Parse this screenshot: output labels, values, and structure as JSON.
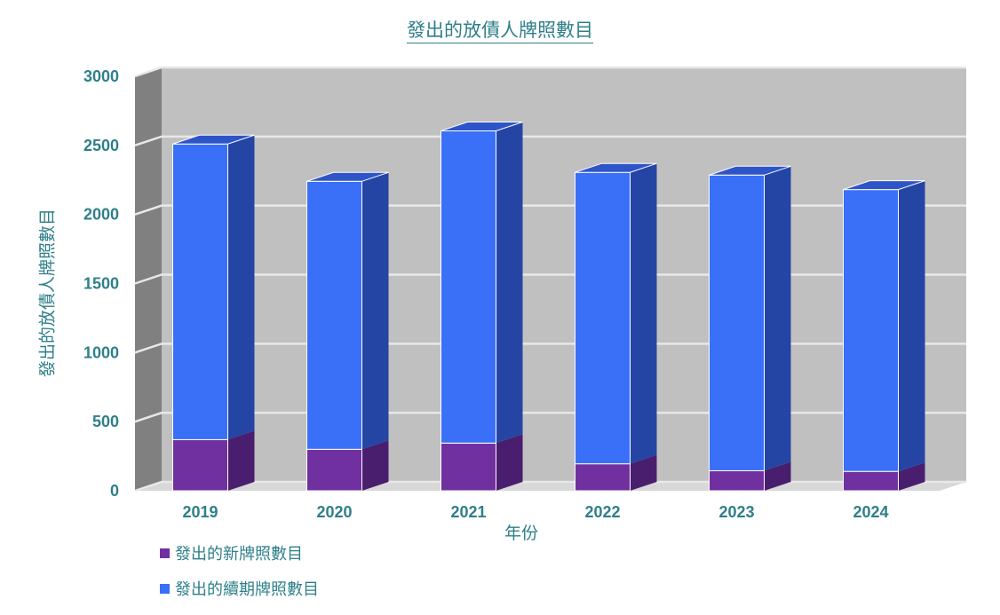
{
  "chart_data": {
    "type": "bar",
    "stacked": true,
    "title": "發出的放債人牌照數目",
    "xlabel": "年份",
    "ylabel": "發出的放債人牌照數目",
    "categories": [
      "2019",
      "2020",
      "2021",
      "2022",
      "2023",
      "2024"
    ],
    "ylim": [
      0,
      3000
    ],
    "yticks": [
      0,
      500,
      1000,
      1500,
      2000,
      2500,
      3000
    ],
    "grid": true,
    "legend_position": "bottom-left",
    "series": [
      {
        "name": "發出的新牌照數目",
        "values": [
          370,
          300,
          345,
          195,
          145,
          140
        ],
        "color": "#7030a0"
      },
      {
        "name": "發出的續期牌照數目",
        "values": [
          2140,
          1940,
          2260,
          2110,
          2140,
          2040
        ],
        "color": "#3a6ff7"
      }
    ]
  }
}
